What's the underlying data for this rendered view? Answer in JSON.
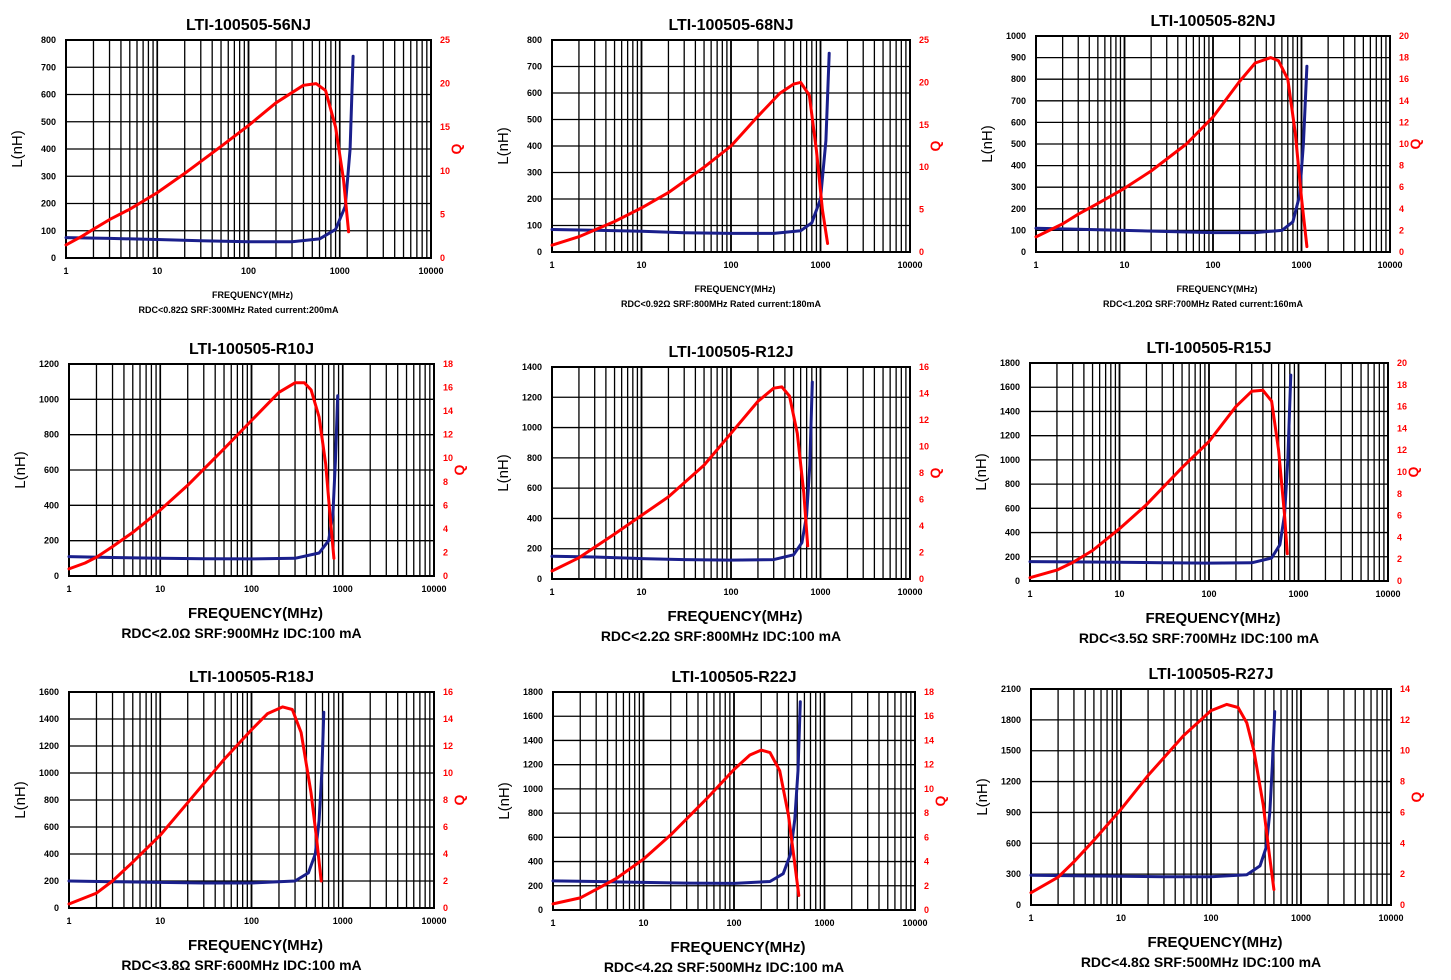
{
  "colors": {
    "inductance": "#1a1f8c",
    "q_factor": "#ff0000",
    "grid": "#000000"
  },
  "chart_data": [
    {
      "type": "line",
      "title": "LTI-100505-56NJ",
      "xlabel": "FREQUENCY(MHz)",
      "xscale": "log",
      "xlim": [
        1,
        10000
      ],
      "xticks": [
        "1",
        "10",
        "100",
        "1000",
        "10000"
      ],
      "ylabel": "L(nH)",
      "ylim": [
        0,
        800
      ],
      "yticks": [
        "0",
        "100",
        "200",
        "300",
        "400",
        "500",
        "600",
        "700",
        "800"
      ],
      "y2label": "Q",
      "y2lim": [
        0,
        25
      ],
      "y2ticks": [
        "0",
        "5",
        "10",
        "15",
        "20",
        "25"
      ],
      "footer": "RDC<0.82Ω SRF:300MHz Rated current:200mA",
      "series": [
        {
          "axis": "L",
          "x": [
            1,
            3,
            10,
            30,
            100,
            300,
            600,
            900,
            1150,
            1300,
            1400
          ],
          "y": [
            75,
            72,
            68,
            63,
            60,
            60,
            70,
            105,
            190,
            400,
            740
          ]
        },
        {
          "axis": "Q",
          "x": [
            1,
            1.5,
            2,
            3,
            5,
            10,
            20,
            50,
            100,
            200,
            400,
            550,
            700,
            900,
            1100,
            1250
          ],
          "y": [
            1.5,
            2.5,
            3.3,
            4.4,
            5.6,
            7.5,
            9.7,
            12.8,
            15.2,
            17.8,
            19.8,
            20.0,
            19.2,
            15,
            9,
            3
          ]
        }
      ]
    },
    {
      "type": "line",
      "title": "LTI-100505-68NJ",
      "xlabel": "FREQUENCY(MHz)",
      "xscale": "log",
      "xlim": [
        1,
        10000
      ],
      "xticks": [
        "1",
        "10",
        "100",
        "1000",
        "10000"
      ],
      "ylabel": "L(nH)",
      "ylim": [
        0,
        800
      ],
      "yticks": [
        "0",
        "100",
        "200",
        "300",
        "400",
        "500",
        "600",
        "700",
        "800"
      ],
      "y2label": "Q",
      "y2lim": [
        0,
        25
      ],
      "y2ticks": [
        "0",
        "5",
        "10",
        "15",
        "20",
        "25"
      ],
      "footer": "RDC<0.92Ω SRF:800MHz Rated current:180mA",
      "series": [
        {
          "axis": "L",
          "x": [
            1,
            3,
            10,
            30,
            100,
            300,
            600,
            800,
            1000,
            1150,
            1250
          ],
          "y": [
            85,
            82,
            78,
            73,
            70,
            70,
            80,
            110,
            200,
            420,
            750
          ]
        },
        {
          "axis": "Q",
          "x": [
            1,
            2,
            3,
            5,
            10,
            20,
            50,
            100,
            200,
            350,
            500,
            600,
            750,
            900,
            1050,
            1200
          ],
          "y": [
            0.8,
            1.8,
            2.6,
            3.6,
            5.2,
            7.0,
            10.0,
            12.5,
            16.0,
            18.7,
            19.8,
            20.0,
            18.5,
            12,
            5,
            1
          ]
        }
      ]
    },
    {
      "type": "line",
      "title": "LTI-100505-82NJ",
      "xlabel": "FREQUENCY(MHz)",
      "xscale": "log",
      "xlim": [
        1,
        10000
      ],
      "xticks": [
        "1",
        "10",
        "100",
        "1000",
        "10000"
      ],
      "ylabel": "L(nH)",
      "ylim": [
        0,
        1000
      ],
      "yticks": [
        "0",
        "100",
        "200",
        "300",
        "400",
        "500",
        "600",
        "700",
        "800",
        "900",
        "1000"
      ],
      "y2label": "Q",
      "y2lim": [
        0,
        20
      ],
      "y2ticks": [
        "0",
        "2",
        "4",
        "6",
        "8",
        "10",
        "12",
        "14",
        "16",
        "18",
        "20"
      ],
      "footer": "RDC<1.20Ω SRF:700MHz Rated current:160mA",
      "series": [
        {
          "axis": "L",
          "x": [
            1,
            3,
            10,
            30,
            100,
            300,
            600,
            800,
            950,
            1050,
            1150
          ],
          "y": [
            110,
            105,
            100,
            95,
            90,
            90,
            100,
            140,
            260,
            500,
            860
          ]
        },
        {
          "axis": "Q",
          "x": [
            1,
            2,
            3,
            5,
            10,
            20,
            50,
            100,
            200,
            300,
            450,
            550,
            700,
            850,
            1000,
            1150
          ],
          "y": [
            1.4,
            2.6,
            3.5,
            4.5,
            5.9,
            7.5,
            10.0,
            12.5,
            15.8,
            17.5,
            18.0,
            17.7,
            16.0,
            11,
            5,
            0.5
          ]
        }
      ]
    },
    {
      "type": "line",
      "title": "LTI-100505-R10J",
      "xlabel": "FREQUENCY(MHz)",
      "xscale": "log",
      "xlim": [
        1,
        10000
      ],
      "xticks": [
        "1",
        "10",
        "100",
        "1000",
        "10000"
      ],
      "ylabel": "L(nH)",
      "ylim": [
        0,
        1200
      ],
      "yticks": [
        "0",
        "200",
        "400",
        "600",
        "800",
        "1000",
        "1200"
      ],
      "y2label": "Q",
      "y2lim": [
        0,
        18
      ],
      "y2ticks": [
        "0",
        "2",
        "4",
        "6",
        "8",
        "10",
        "12",
        "14",
        "16",
        "18"
      ],
      "footer": "RDC<2.0Ω SRF:900MHz IDC:100 mA",
      "series": [
        {
          "axis": "L",
          "x": [
            1,
            3,
            10,
            30,
            100,
            300,
            550,
            700,
            780,
            830,
            880
          ],
          "y": [
            110,
            105,
            100,
            98,
            97,
            100,
            130,
            200,
            350,
            650,
            1020
          ]
        },
        {
          "axis": "Q",
          "x": [
            1,
            1.5,
            2,
            3,
            5,
            10,
            20,
            50,
            100,
            200,
            300,
            380,
            450,
            550,
            650,
            720,
            800
          ],
          "y": [
            0.6,
            1.1,
            1.6,
            2.5,
            3.7,
            5.6,
            7.7,
            10.8,
            13.2,
            15.6,
            16.4,
            16.4,
            15.8,
            13.5,
            9.5,
            5.5,
            1.5
          ]
        }
      ]
    },
    {
      "type": "line",
      "title": "LTI-100505-R12J",
      "xlabel": "FREQUENCY(MHz)",
      "xscale": "log",
      "xlim": [
        1,
        10000
      ],
      "xticks": [
        "1",
        "10",
        "100",
        "1000",
        "10000"
      ],
      "ylabel": "L(nH)",
      "ylim": [
        0,
        1400
      ],
      "yticks": [
        "0",
        "200",
        "400",
        "600",
        "800",
        "1000",
        "1200",
        "1400"
      ],
      "y2label": "Q",
      "y2lim": [
        0,
        16
      ],
      "y2ticks": [
        "0",
        "2",
        "4",
        "6",
        "8",
        "10",
        "12",
        "14",
        "16"
      ],
      "footer": "RDC<2.2Ω SRF:800MHz IDC:100 mA",
      "series": [
        {
          "axis": "L",
          "x": [
            1,
            3,
            10,
            30,
            100,
            300,
            500,
            620,
            700,
            760,
            810
          ],
          "y": [
            150,
            145,
            135,
            128,
            125,
            128,
            160,
            240,
            420,
            750,
            1300
          ]
        },
        {
          "axis": "Q",
          "x": [
            1,
            2,
            3,
            5,
            10,
            20,
            50,
            100,
            200,
            300,
            370,
            450,
            550,
            650,
            720
          ],
          "y": [
            0.6,
            1.6,
            2.4,
            3.4,
            4.8,
            6.2,
            8.6,
            11.0,
            13.4,
            14.4,
            14.5,
            13.8,
            11.0,
            6.5,
            2.5
          ]
        }
      ]
    },
    {
      "type": "line",
      "title": "LTI-100505-R15J",
      "xlabel": "FREQUENCY(MHz)",
      "xscale": "log",
      "xlim": [
        1,
        10000
      ],
      "xticks": [
        "1",
        "10",
        "100",
        "1000",
        "10000"
      ],
      "ylabel": "L(nH)",
      "ylim": [
        0,
        1800
      ],
      "yticks": [
        "0",
        "200",
        "400",
        "600",
        "800",
        "1000",
        "1200",
        "1400",
        "1600",
        "1800"
      ],
      "y2label": "Q",
      "y2lim": [
        0,
        20
      ],
      "y2ticks": [
        "0",
        "2",
        "4",
        "6",
        "8",
        "10",
        "12",
        "14",
        "16",
        "18",
        "20"
      ],
      "footer": "RDC<3.5Ω SRF:700MHz IDC:100 mA",
      "series": [
        {
          "axis": "L",
          "x": [
            1,
            3,
            10,
            30,
            100,
            300,
            500,
            620,
            700,
            760,
            820
          ],
          "y": [
            160,
            158,
            155,
            150,
            148,
            150,
            190,
            300,
            550,
            1000,
            1700
          ]
        },
        {
          "axis": "Q",
          "x": [
            1,
            2,
            3,
            5,
            10,
            20,
            50,
            100,
            200,
            300,
            400,
            500,
            600,
            700,
            750
          ],
          "y": [
            0.3,
            1.0,
            1.7,
            2.8,
            4.8,
            7.0,
            10.4,
            12.8,
            16.0,
            17.4,
            17.5,
            16.5,
            12.0,
            6.0,
            2.5
          ]
        }
      ]
    },
    {
      "type": "line",
      "title": "LTI-100505-R18J",
      "xlabel": "FREQUENCY(MHz)",
      "xscale": "log",
      "xlim": [
        1,
        10000
      ],
      "xticks": [
        "1",
        "10",
        "100",
        "1000",
        "10000"
      ],
      "ylabel": "L(nH)",
      "ylim": [
        0,
        1600
      ],
      "yticks": [
        "0",
        "200",
        "400",
        "600",
        "800",
        "1000",
        "1200",
        "1400",
        "1600"
      ],
      "y2label": "Q",
      "y2lim": [
        0,
        16
      ],
      "y2ticks": [
        "0",
        "2",
        "4",
        "6",
        "8",
        "10",
        "12",
        "14",
        "16"
      ],
      "footer": "RDC<3.8Ω SRF:600MHz IDC:100 mA",
      "series": [
        {
          "axis": "L",
          "x": [
            1,
            3,
            10,
            30,
            100,
            300,
            420,
            500,
            550,
            590,
            620
          ],
          "y": [
            200,
            195,
            190,
            185,
            185,
            200,
            260,
            400,
            650,
            1000,
            1450
          ]
        },
        {
          "axis": "Q",
          "x": [
            1,
            2,
            3,
            5,
            10,
            20,
            50,
            100,
            150,
            220,
            280,
            350,
            450,
            520,
            580
          ],
          "y": [
            0.3,
            1.1,
            2.0,
            3.4,
            5.4,
            7.8,
            11.0,
            13.2,
            14.4,
            14.9,
            14.7,
            13.0,
            8.5,
            5.0,
            2.0
          ]
        }
      ]
    },
    {
      "type": "line",
      "title": "LTI-100505-R22J",
      "xlabel": "FREQUENCY(MHz)",
      "xscale": "log",
      "xlim": [
        1,
        10000
      ],
      "xticks": [
        "1",
        "10",
        "100",
        "1000",
        "10000"
      ],
      "ylabel": "L(nH)",
      "ylim": [
        0,
        1800
      ],
      "yticks": [
        "0",
        "200",
        "400",
        "600",
        "800",
        "1000",
        "1200",
        "1400",
        "1600",
        "1800"
      ],
      "y2label": "Q",
      "y2lim": [
        0,
        18
      ],
      "y2ticks": [
        "0",
        "2",
        "4",
        "6",
        "8",
        "10",
        "12",
        "14",
        "16",
        "18"
      ],
      "footer": "RDC<4.2Ω SRF:500MHz IDC:100 mA",
      "series": [
        {
          "axis": "L",
          "x": [
            1,
            3,
            10,
            30,
            100,
            250,
            350,
            420,
            470,
            510,
            540
          ],
          "y": [
            240,
            235,
            228,
            222,
            220,
            235,
            300,
            460,
            750,
            1150,
            1720
          ]
        },
        {
          "axis": "Q",
          "x": [
            1,
            2,
            3,
            5,
            10,
            20,
            50,
            100,
            150,
            200,
            250,
            320,
            400,
            470,
            520
          ],
          "y": [
            0.5,
            1.0,
            1.7,
            2.6,
            4.2,
            6.2,
            9.2,
            11.6,
            12.8,
            13.2,
            13.0,
            11.5,
            7.8,
            3.8,
            1.2
          ]
        }
      ]
    },
    {
      "type": "line",
      "title": "LTI-100505-R27J",
      "xlabel": "FREQUENCY(MHz)",
      "xscale": "log",
      "xlim": [
        1,
        10000
      ],
      "xticks": [
        "1",
        "10",
        "100",
        "1000",
        "10000"
      ],
      "ylabel": "L(nH)",
      "ylim": [
        0,
        2100
      ],
      "yticks": [
        "0",
        "300",
        "600",
        "900",
        "1200",
        "1500",
        "1800",
        "2100"
      ],
      "y2label": "Q",
      "y2lim": [
        0,
        14
      ],
      "y2ticks": [
        "0",
        "2",
        "4",
        "6",
        "8",
        "10",
        "12",
        "14"
      ],
      "footer": "RDC<4.8Ω SRF:500MHz IDC:100 mA",
      "series": [
        {
          "axis": "L",
          "x": [
            1,
            3,
            10,
            30,
            100,
            250,
            350,
            410,
            450,
            480,
            510
          ],
          "y": [
            290,
            285,
            280,
            275,
            275,
            295,
            380,
            560,
            900,
            1350,
            1880
          ]
        },
        {
          "axis": "Q",
          "x": [
            1,
            2,
            3,
            5,
            10,
            20,
            50,
            100,
            150,
            200,
            250,
            300,
            380,
            440,
            500
          ],
          "y": [
            0.8,
            1.8,
            2.8,
            4.2,
            6.2,
            8.4,
            11.0,
            12.6,
            13.0,
            12.8,
            11.8,
            10.0,
            6.5,
            3.5,
            1.0
          ]
        }
      ]
    }
  ]
}
